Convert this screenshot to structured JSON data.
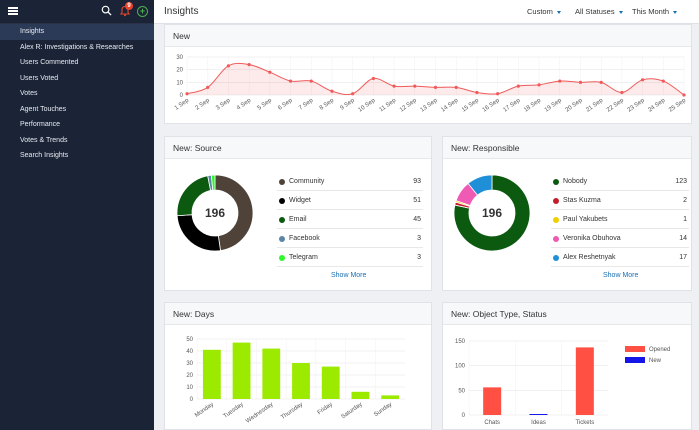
{
  "sidebar": {
    "badge": "9",
    "items": [
      {
        "label": "Insights",
        "active": true
      },
      {
        "label": "Alex R: Investigations & Researches"
      },
      {
        "label": "Users Commented"
      },
      {
        "label": "Users Voted"
      },
      {
        "label": "Votes"
      },
      {
        "label": "Agent Touches"
      },
      {
        "label": "Performance"
      },
      {
        "label": "Votes & Trends"
      },
      {
        "label": "Search Insights"
      }
    ]
  },
  "header": {
    "title": "Insights",
    "filters": [
      "Custom",
      "All Statuses",
      "This Month"
    ]
  },
  "cards": {
    "new": {
      "title": "New"
    },
    "source": {
      "title": "New: Source",
      "total": "196",
      "show_more": "Show More",
      "items": [
        {
          "label": "Community",
          "value": "93",
          "color": "#4f4339"
        },
        {
          "label": "Widget",
          "value": "51",
          "color": "#000000"
        },
        {
          "label": "Email",
          "value": "45",
          "color": "#0b5a10"
        },
        {
          "label": "Facebook",
          "value": "3",
          "color": "#5a87a8"
        },
        {
          "label": "Telegram",
          "value": "3",
          "color": "#2ef72a"
        }
      ]
    },
    "responsible": {
      "title": "New: Responsible",
      "total": "196",
      "show_more": "Show More",
      "items": [
        {
          "label": "Nobody",
          "value": "123",
          "color": "#0b5a10"
        },
        {
          "label": "Stas Kuzma",
          "value": "2",
          "color": "#c41d2a"
        },
        {
          "label": "Paul Yakubets",
          "value": "1",
          "color": "#f0d000"
        },
        {
          "label": "Veronika Obuhova",
          "value": "14",
          "color": "#ee5ab4"
        },
        {
          "label": "Alex Reshetnyak",
          "value": "17",
          "color": "#1f8fd8"
        }
      ]
    },
    "days": {
      "title": "New: Days"
    },
    "object": {
      "title": "New: Object Type, Status"
    }
  },
  "chart_data": [
    {
      "type": "area",
      "categories": [
        "1 Sep",
        "2 Sep",
        "3 Sep",
        "4 Sep",
        "5 Sep",
        "6 Sep",
        "7 Sep",
        "8 Sep",
        "9 Sep",
        "10 Sep",
        "11 Sep",
        "12 Sep",
        "13 Sep",
        "14 Sep",
        "15 Sep",
        "16 Sep",
        "17 Sep",
        "18 Sep",
        "19 Sep",
        "20 Sep",
        "21 Sep",
        "22 Sep",
        "23 Sep",
        "24 Sep",
        "25 Sep"
      ],
      "values": [
        1,
        6,
        23,
        24,
        18,
        11,
        11,
        3,
        1,
        13,
        7,
        7,
        6,
        6,
        2,
        1,
        7,
        8,
        11,
        10,
        10,
        2,
        12,
        11,
        0
      ],
      "ylim": [
        0,
        30
      ],
      "yticks": [
        0,
        10,
        20,
        30
      ],
      "color": "#f05a5a",
      "grid": true
    },
    {
      "type": "bar",
      "categories": [
        "Monday",
        "Tuesday",
        "Wednesday",
        "Thursday",
        "Friday",
        "Saturday",
        "Sunday"
      ],
      "values": [
        41,
        47,
        42,
        30,
        27,
        6,
        3
      ],
      "ylim": [
        0,
        50
      ],
      "yticks": [
        0,
        10,
        20,
        30,
        40,
        50
      ],
      "color": "#9bea00",
      "grid": true
    },
    {
      "type": "bar",
      "categories": [
        "Chats",
        "Ideas",
        "Tickets"
      ],
      "series": [
        {
          "name": "Opened",
          "values": [
            56,
            0,
            137
          ],
          "color": "#ff5043"
        },
        {
          "name": "New",
          "values": [
            0,
            2,
            0
          ],
          "color": "#1515e8"
        }
      ],
      "ylim": [
        0,
        150
      ],
      "yticks": [
        0,
        50,
        100,
        150
      ],
      "legend": "top-right",
      "grid": true
    }
  ]
}
